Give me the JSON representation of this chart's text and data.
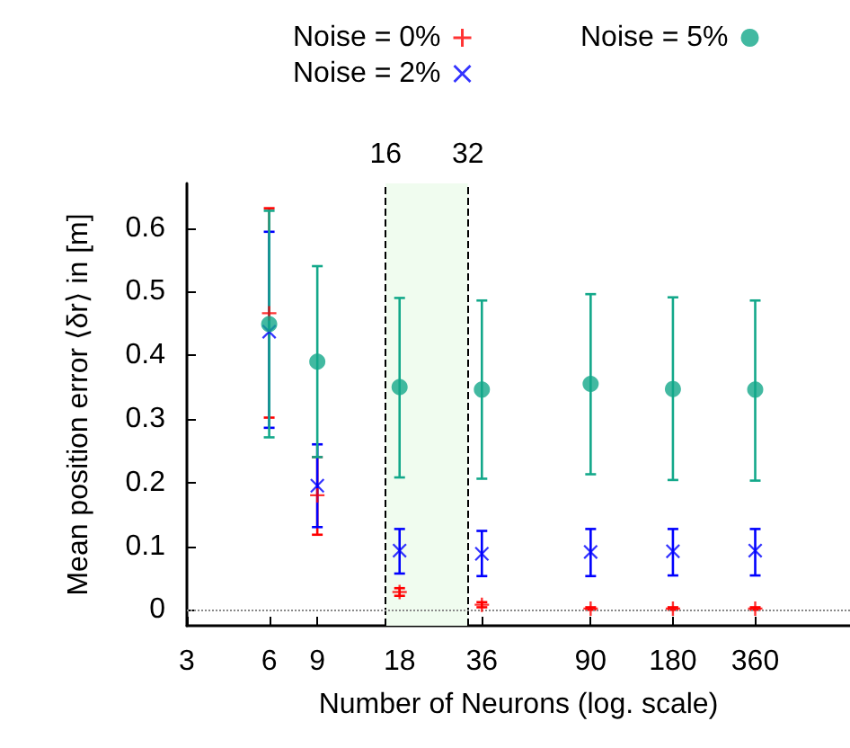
{
  "chart_data": {
    "type": "scatter",
    "xlabel": "Number of Neurons (log. scale)",
    "ylabel": "Mean position error ⟨δr⟩ in [m]",
    "log": "x",
    "x": [
      6,
      9,
      18,
      36,
      90,
      180,
      360
    ],
    "xlim": [
      3,
      800
    ],
    "xticks": [
      3,
      6,
      9,
      18,
      36,
      90,
      180,
      360
    ],
    "ylim": [
      -0.025,
      0.67
    ],
    "yticks": [
      0,
      0.1,
      0.2,
      0.3,
      0.4,
      0.5,
      0.6
    ],
    "grid": false,
    "legend": "top",
    "series": [
      {
        "name": "Noise = 0%",
        "color": "#ff0000",
        "marker": "plus",
        "values": [
          0.466,
          0.18,
          0.028,
          0.008,
          0.002,
          0.002,
          0.002
        ],
        "errors": [
          [
            0.302,
            0.631
          ],
          [
            0.118,
            0.24
          ],
          [
            0.022,
            0.034
          ],
          [
            0.004,
            0.012
          ],
          [
            0.0,
            0.004
          ],
          [
            0.0,
            0.004
          ],
          [
            0.0,
            0.004
          ]
        ]
      },
      {
        "name": "Noise = 2%",
        "color": "#0000ff",
        "marker": "cross",
        "values": [
          0.437,
          0.195,
          0.093,
          0.088,
          0.091,
          0.092,
          0.093
        ],
        "errors": [
          [
            0.286,
            0.594
          ],
          [
            0.13,
            0.26
          ],
          [
            0.057,
            0.127
          ],
          [
            0.053,
            0.124
          ],
          [
            0.053,
            0.127
          ],
          [
            0.054,
            0.127
          ],
          [
            0.054,
            0.127
          ]
        ]
      },
      {
        "name": "Noise = 5%",
        "color": "#13a88a",
        "marker": "circle",
        "values": [
          0.449,
          0.39,
          0.35,
          0.346,
          0.355,
          0.347,
          0.346
        ],
        "errors": [
          [
            0.271,
            0.627
          ],
          [
            0.24,
            0.54
          ],
          [
            0.208,
            0.49
          ],
          [
            0.206,
            0.486
          ],
          [
            0.213,
            0.496
          ],
          [
            0.204,
            0.491
          ],
          [
            0.203,
            0.486
          ]
        ]
      }
    ],
    "ref_lines": [
      {
        "axis": "x",
        "value": 16,
        "label": "16",
        "line_style": "dashed",
        "color": "#000000"
      },
      {
        "axis": "x",
        "value": 32,
        "label": "32",
        "line_style": "dashed",
        "color": "#000000"
      },
      {
        "axis": "y",
        "value": 0,
        "line_style": "dotted",
        "color": "#888888"
      }
    ],
    "bands": [
      {
        "axis": "x",
        "from": 16,
        "to": 32,
        "color": "#f0fcef"
      }
    ]
  }
}
